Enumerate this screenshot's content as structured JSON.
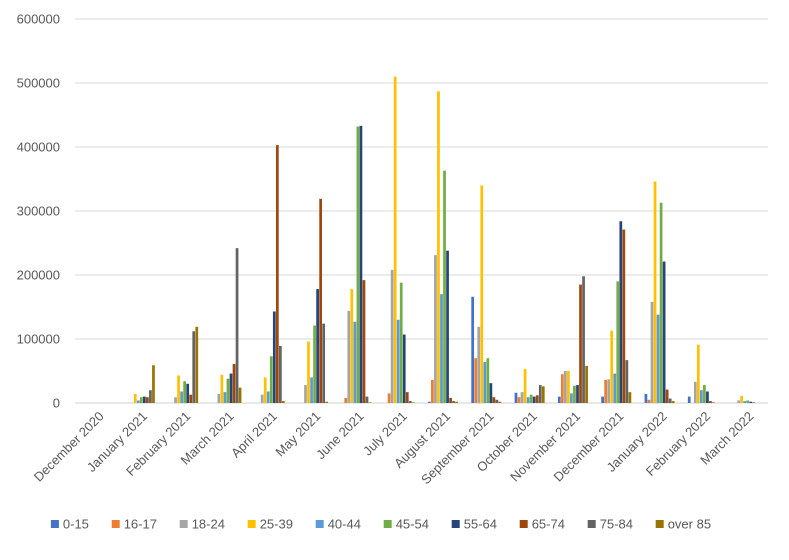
{
  "chart_data": {
    "type": "bar",
    "title": "",
    "xlabel": "",
    "ylabel": "",
    "ylim": [
      0,
      600000
    ],
    "yticks": [
      "0",
      "100000",
      "200000",
      "300000",
      "400000",
      "500000",
      "600000"
    ],
    "ytick_values": [
      0,
      100000,
      200000,
      300000,
      400000,
      500000,
      600000
    ],
    "grid": true,
    "legend_position": "bottom",
    "categories": [
      "December 2020",
      "January 2021",
      "February 2021",
      "March 2021",
      "April 2021",
      "May 2021",
      "June 2021",
      "July 2021",
      "August 2021",
      "September 2021",
      "October 2021",
      "November 2021",
      "December 2021",
      "January 2022",
      "February 2022",
      "March 2022"
    ],
    "series": [
      {
        "name": "0-15",
        "color": "#4472C4",
        "values": [
          0,
          0,
          0,
          0,
          0,
          0,
          0,
          0,
          2000,
          166000,
          16000,
          10000,
          10000,
          14000,
          10000,
          0
        ]
      },
      {
        "name": "16-17",
        "color": "#ED7D31",
        "values": [
          0,
          0,
          0,
          0,
          0,
          0,
          8000,
          15000,
          36000,
          70000,
          9000,
          45000,
          36000,
          5000,
          0,
          0
        ]
      },
      {
        "name": "18-24",
        "color": "#A5A5A5",
        "values": [
          0,
          0,
          9000,
          14000,
          13000,
          28000,
          144000,
          208000,
          231000,
          119000,
          17000,
          50000,
          37000,
          158000,
          33000,
          4000
        ]
      },
      {
        "name": "25-39",
        "color": "#FFC000",
        "values": [
          0,
          14000,
          43000,
          44000,
          40000,
          96000,
          178000,
          510000,
          487000,
          340000,
          53000,
          50000,
          113000,
          346000,
          91000,
          11000
        ]
      },
      {
        "name": "40-44",
        "color": "#5B9BD5",
        "values": [
          0,
          4000,
          18000,
          17000,
          18000,
          40000,
          127000,
          130000,
          170000,
          64000,
          9000,
          15000,
          46000,
          138000,
          20000,
          3000
        ]
      },
      {
        "name": "45-54",
        "color": "#70AD47",
        "values": [
          0,
          9000,
          34000,
          38000,
          73000,
          121000,
          432000,
          188000,
          363000,
          70000,
          13000,
          27000,
          190000,
          313000,
          28000,
          4000
        ]
      },
      {
        "name": "55-64",
        "color": "#264478",
        "values": [
          0,
          10000,
          30000,
          46000,
          143000,
          178000,
          433000,
          107000,
          238000,
          31000,
          10000,
          28000,
          284000,
          221000,
          18000,
          2000
        ]
      },
      {
        "name": "65-74",
        "color": "#9E480E",
        "values": [
          0,
          9000,
          13000,
          61000,
          403000,
          319000,
          192000,
          17000,
          8000,
          9000,
          12000,
          185000,
          271000,
          21000,
          3000,
          1000
        ]
      },
      {
        "name": "75-84",
        "color": "#636363",
        "values": [
          0,
          20000,
          112000,
          242000,
          89000,
          124000,
          10000,
          3000,
          3000,
          5000,
          28000,
          198000,
          67000,
          7000,
          1000,
          0
        ]
      },
      {
        "name": "over 85",
        "color": "#997300",
        "values": [
          0,
          59000,
          119000,
          24000,
          3000,
          2000,
          1000,
          1000,
          2000,
          2000,
          26000,
          58000,
          17000,
          3000,
          0,
          0
        ]
      }
    ]
  }
}
